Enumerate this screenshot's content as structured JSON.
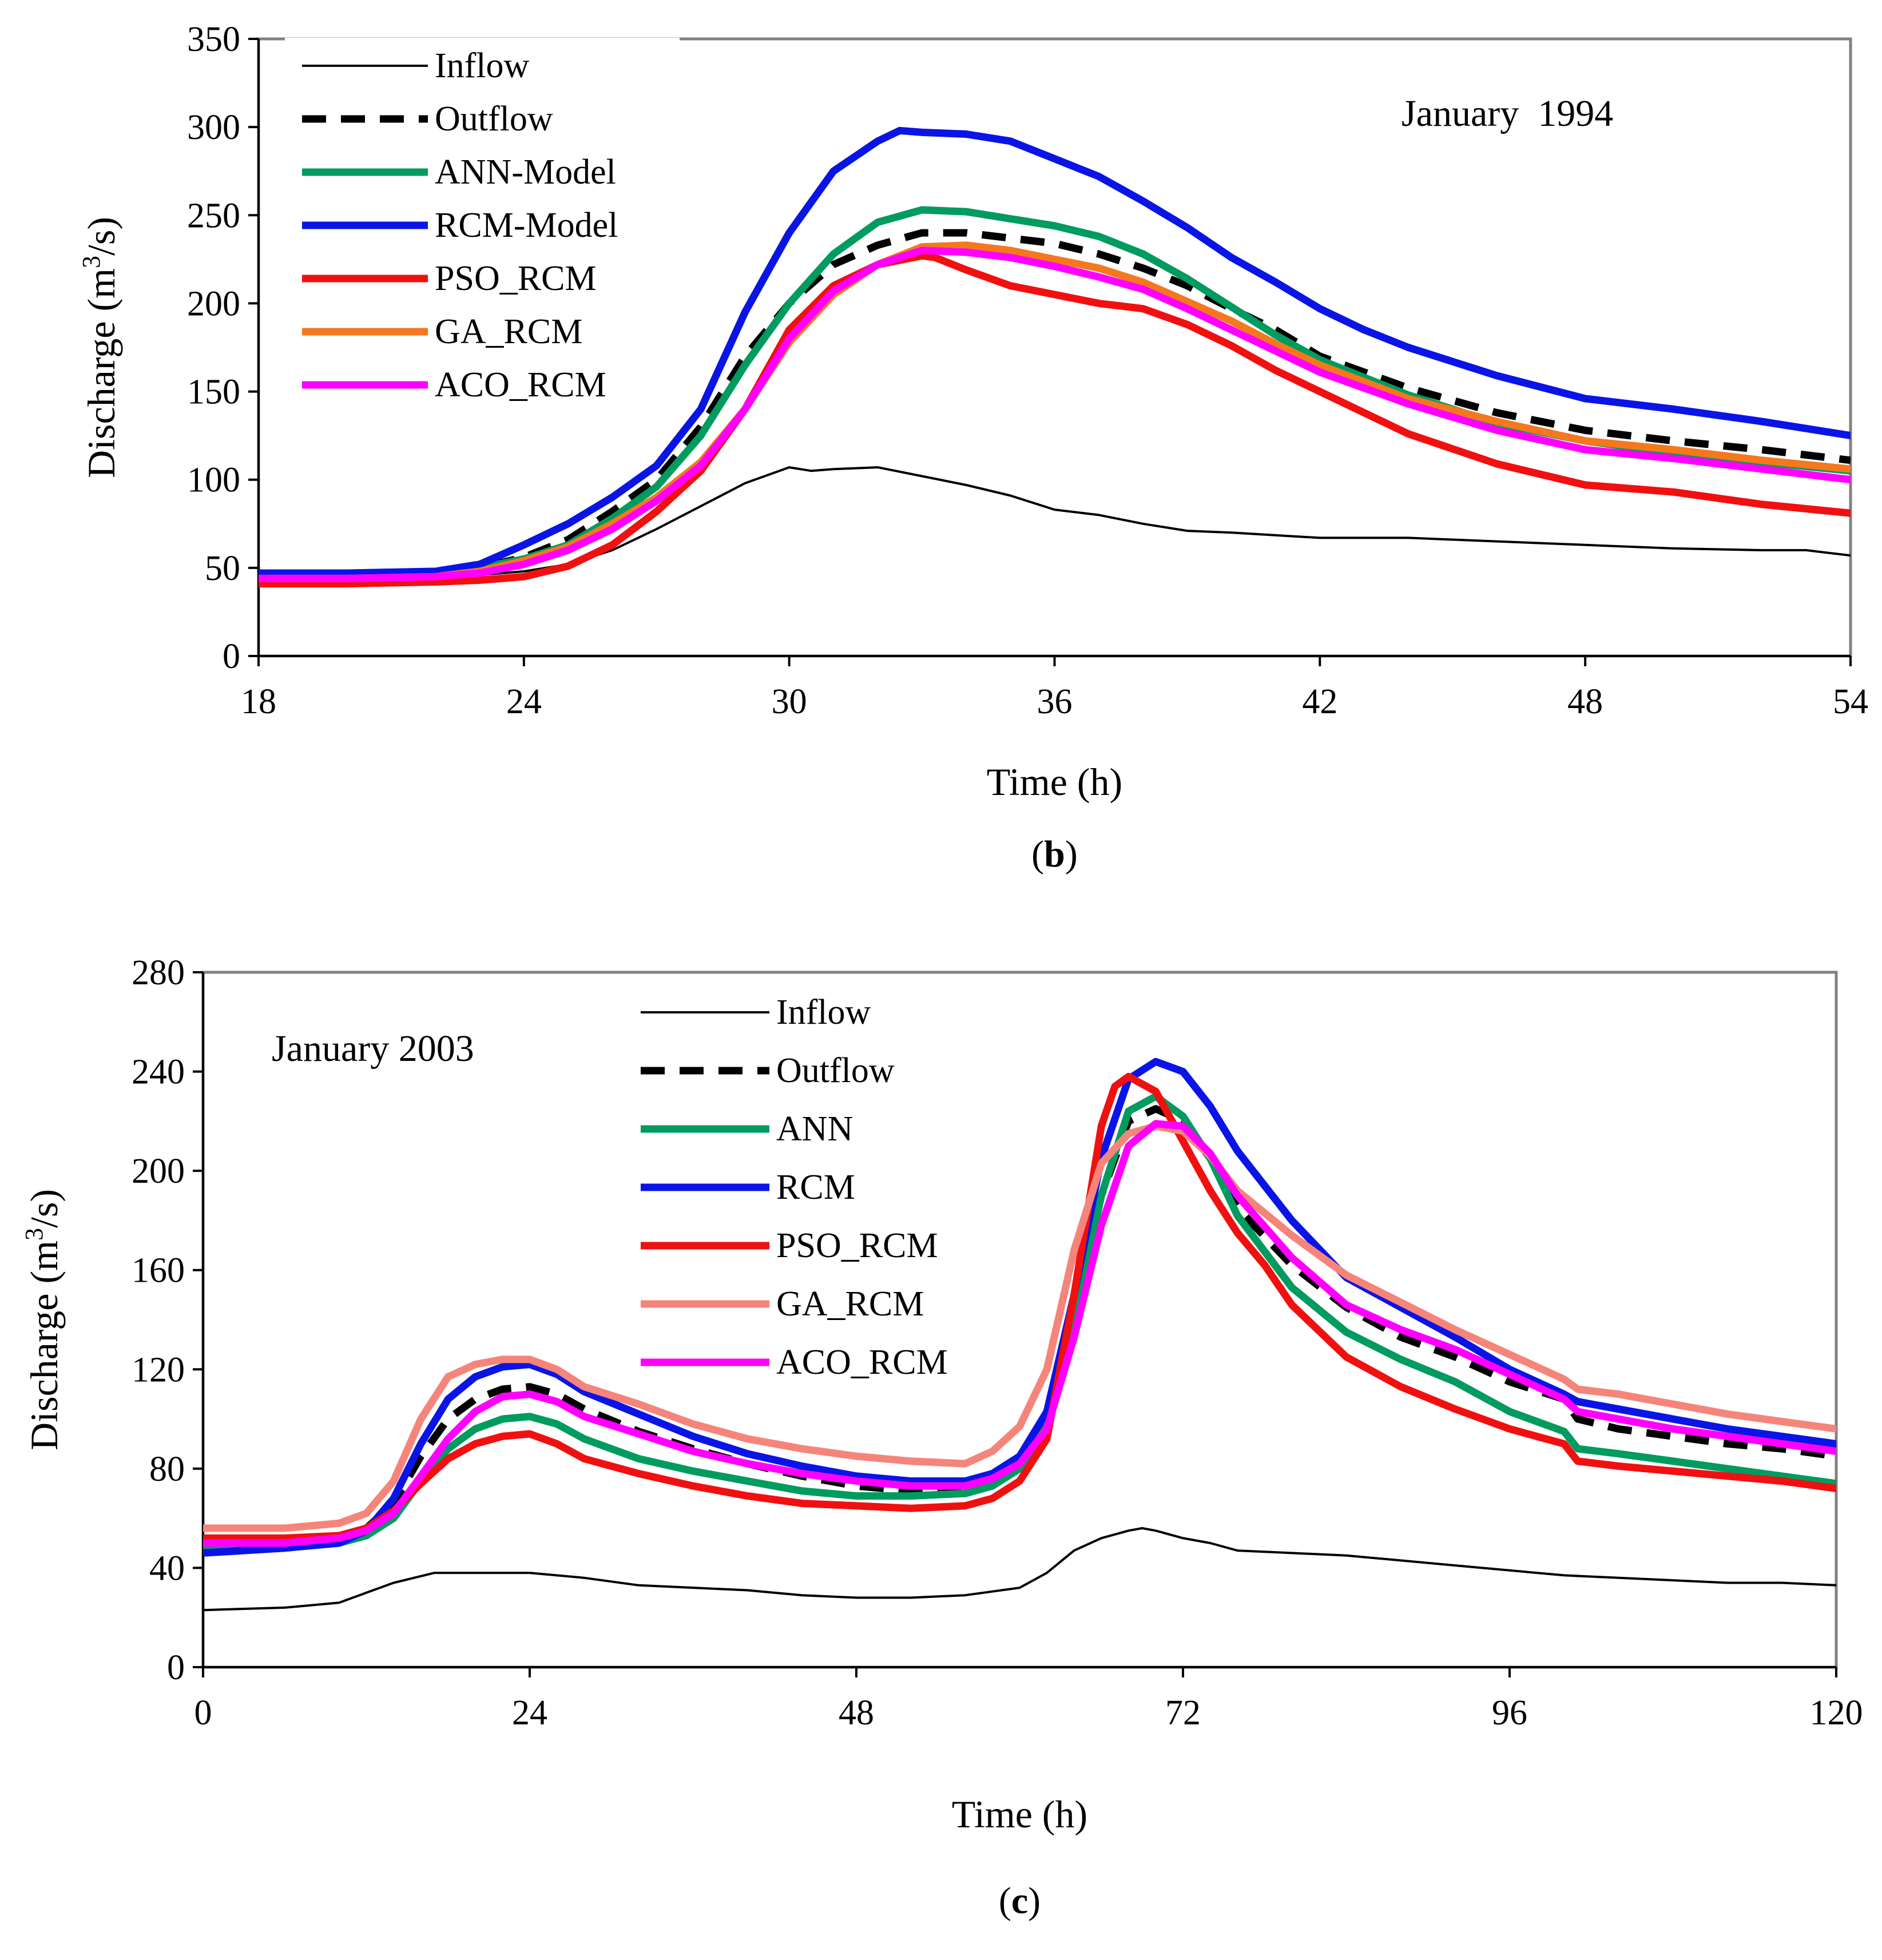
{
  "chart_data": [
    {
      "type": "line",
      "panel_label": {
        "open": "(",
        "letter": "b",
        "close": ")"
      },
      "annotation": "January  1994",
      "xlabel": "Time (h)",
      "ylabel": {
        "base": "Discharge (m",
        "sup": "3",
        "rest": "/s)"
      },
      "xlim": [
        18,
        54
      ],
      "ylim": [
        0,
        350
      ],
      "xticks": [
        18,
        24,
        30,
        36,
        42,
        48,
        54
      ],
      "yticks": [
        0,
        50,
        100,
        150,
        200,
        250,
        300,
        350
      ],
      "grid": false,
      "legend_position": "top-left",
      "series": [
        {
          "name": "Inflow",
          "color": "#000000",
          "style": "thin",
          "x": [
            18,
            20,
            22,
            23,
            24,
            25,
            26,
            27,
            28,
            29,
            30,
            30.5,
            31,
            32,
            33,
            34,
            35,
            36,
            37,
            38,
            39,
            40,
            42,
            44,
            46,
            48,
            50,
            52,
            53,
            54
          ],
          "y": [
            45,
            45,
            45,
            46,
            48,
            52,
            60,
            72,
            85,
            98,
            107,
            105,
            106,
            107,
            102,
            97,
            91,
            83,
            80,
            75,
            71,
            70,
            67,
            67,
            65,
            63,
            61,
            60,
            60,
            57
          ]
        },
        {
          "name": "Outflow",
          "color": "#000000",
          "style": "dashed",
          "x": [
            18,
            20,
            22,
            23,
            24,
            25,
            26,
            27,
            28,
            29,
            30,
            31,
            32,
            33,
            34,
            35,
            36,
            37,
            38,
            39,
            40,
            41,
            42,
            44,
            46,
            48,
            50,
            52,
            54
          ],
          "y": [
            46,
            46,
            47,
            50,
            56,
            66,
            82,
            100,
            130,
            170,
            200,
            222,
            233,
            240,
            240,
            237,
            234,
            228,
            220,
            210,
            197,
            185,
            170,
            152,
            138,
            128,
            122,
            117,
            111
          ]
        },
        {
          "name": "ANN-Model",
          "color": "#009b5e",
          "style": "thick",
          "x": [
            18,
            20,
            22,
            23,
            24,
            25,
            26,
            27,
            28,
            29,
            30,
            31,
            32,
            33,
            34,
            35,
            36,
            37,
            38,
            39,
            40,
            41,
            42,
            44,
            46,
            48,
            50,
            52,
            54
          ],
          "y": [
            47,
            47,
            48,
            50,
            55,
            63,
            78,
            96,
            125,
            165,
            200,
            228,
            246,
            253,
            252,
            248,
            244,
            238,
            228,
            214,
            198,
            182,
            168,
            148,
            132,
            122,
            115,
            110,
            105
          ]
        },
        {
          "name": "RCM-Model",
          "color": "#0a14e6",
          "style": "thick",
          "x": [
            18,
            20,
            22,
            23,
            24,
            25,
            26,
            27,
            28,
            29,
            30,
            31,
            32,
            32.5,
            33,
            34,
            35,
            36,
            37,
            38,
            39,
            40,
            41,
            42,
            43,
            44,
            46,
            48,
            50,
            52,
            54
          ],
          "y": [
            47,
            47,
            48,
            52,
            63,
            75,
            90,
            108,
            140,
            195,
            240,
            275,
            292,
            298,
            297,
            296,
            292,
            282,
            272,
            258,
            243,
            226,
            212,
            197,
            185,
            175,
            159,
            146,
            140,
            133,
            125
          ]
        },
        {
          "name": "PSO_RCM",
          "color": "#f01010",
          "style": "thick",
          "x": [
            18,
            20,
            22,
            23,
            24,
            25,
            26,
            27,
            28,
            29,
            30,
            31,
            32,
            33,
            33.3,
            34,
            35,
            36,
            37,
            38,
            39,
            40,
            41,
            42,
            44,
            46,
            48,
            50,
            52,
            54
          ],
          "y": [
            41,
            41,
            42,
            43,
            45,
            51,
            63,
            82,
            105,
            140,
            185,
            210,
            222,
            227,
            226,
            219,
            210,
            205,
            200,
            197,
            188,
            176,
            162,
            150,
            126,
            109,
            97,
            93,
            86,
            81
          ]
        },
        {
          "name": "GA_RCM",
          "color": "#f5781e",
          "style": "thick",
          "x": [
            18,
            20,
            22,
            23,
            24,
            25,
            26,
            27,
            28,
            29,
            30,
            31,
            32,
            33,
            34,
            35,
            36,
            37,
            38,
            39,
            40,
            41,
            42,
            44,
            46,
            48,
            50,
            52,
            54
          ],
          "y": [
            44,
            44,
            45,
            48,
            54,
            62,
            75,
            90,
            110,
            140,
            178,
            205,
            222,
            232,
            233,
            230,
            225,
            220,
            212,
            201,
            190,
            177,
            165,
            146,
            133,
            122,
            117,
            111,
            106
          ]
        },
        {
          "name": "ACO_RCM",
          "color": "#ff00ff",
          "style": "thick",
          "x": [
            18,
            20,
            22,
            23,
            24,
            25,
            26,
            27,
            28,
            29,
            30,
            31,
            32,
            33,
            34,
            35,
            36,
            37,
            38,
            39,
            40,
            41,
            42,
            44,
            46,
            48,
            50,
            52,
            54
          ],
          "y": [
            44,
            44,
            45,
            47,
            52,
            60,
            72,
            88,
            108,
            140,
            180,
            207,
            222,
            230,
            229,
            226,
            221,
            215,
            208,
            197,
            185,
            173,
            161,
            143,
            128,
            117,
            112,
            106,
            100
          ]
        }
      ]
    },
    {
      "type": "line",
      "panel_label": {
        "open": "(",
        "letter": "c",
        "close": ")"
      },
      "annotation": "January 2003",
      "xlabel": "Time (h)",
      "ylabel": {
        "base": "Discharge (m",
        "sup": "3",
        "rest": "/s)"
      },
      "xlim": [
        0,
        120
      ],
      "ylim": [
        0,
        280
      ],
      "xticks": [
        0,
        24,
        48,
        72,
        96,
        120
      ],
      "yticks": [
        0,
        40,
        80,
        120,
        160,
        200,
        240,
        280
      ],
      "grid": false,
      "legend_position": "top-center",
      "series": [
        {
          "name": "Inflow",
          "color": "#000000",
          "style": "thin",
          "x": [
            0,
            6,
            10,
            12,
            14,
            17,
            20,
            24,
            28,
            32,
            36,
            40,
            44,
            48,
            52,
            56,
            60,
            62,
            64,
            66,
            68,
            69,
            70,
            72,
            74,
            76,
            80,
            84,
            88,
            92,
            96,
            100,
            104,
            108,
            112,
            116,
            120
          ],
          "y": [
            23,
            24,
            26,
            30,
            34,
            38,
            38,
            38,
            36,
            33,
            32,
            31,
            29,
            28,
            28,
            29,
            32,
            38,
            47,
            52,
            55,
            56,
            55,
            52,
            50,
            47,
            46,
            45,
            43,
            41,
            39,
            37,
            36,
            35,
            34,
            34,
            33
          ]
        },
        {
          "name": "Outflow",
          "color": "#000000",
          "style": "dashed",
          "x": [
            0,
            6,
            10,
            12,
            14,
            16,
            18,
            20,
            22,
            24,
            26,
            28,
            32,
            36,
            40,
            44,
            48,
            52,
            56,
            58,
            60,
            62,
            64,
            66,
            68,
            70,
            72,
            74,
            76,
            80,
            84,
            88,
            92,
            96,
            100,
            101,
            104,
            108,
            112,
            116,
            120
          ],
          "y": [
            49,
            50,
            52,
            56,
            66,
            85,
            100,
            108,
            112,
            113,
            110,
            104,
            95,
            88,
            82,
            77,
            73,
            71,
            73,
            77,
            83,
            100,
            140,
            190,
            220,
            225,
            220,
            205,
            185,
            162,
            145,
            133,
            125,
            115,
            108,
            100,
            96,
            93,
            90,
            88,
            85
          ]
        },
        {
          "name": "ANN",
          "color": "#009b5e",
          "style": "thick",
          "x": [
            0,
            6,
            10,
            12,
            14,
            16,
            18,
            20,
            22,
            24,
            26,
            28,
            32,
            36,
            40,
            44,
            48,
            52,
            56,
            58,
            60,
            62,
            64,
            66,
            68,
            70,
            72,
            74,
            76,
            80,
            84,
            88,
            92,
            96,
            100,
            101,
            104,
            108,
            112,
            116,
            120
          ],
          "y": [
            47,
            48,
            50,
            53,
            60,
            75,
            88,
            96,
            100,
            101,
            98,
            92,
            84,
            79,
            75,
            71,
            69,
            69,
            70,
            73,
            80,
            97,
            140,
            190,
            224,
            230,
            222,
            205,
            182,
            153,
            135,
            124,
            115,
            103,
            95,
            88,
            86,
            83,
            80,
            77,
            74
          ]
        },
        {
          "name": "RCM",
          "color": "#0a14e6",
          "style": "thick",
          "x": [
            0,
            6,
            10,
            12,
            14,
            16,
            18,
            20,
            22,
            24,
            26,
            28,
            32,
            36,
            40,
            44,
            48,
            52,
            56,
            58,
            60,
            62,
            64,
            66,
            68,
            70,
            72,
            74,
            76,
            80,
            84,
            88,
            92,
            96,
            100,
            101,
            104,
            108,
            112,
            116,
            120
          ],
          "y": [
            46,
            48,
            50,
            55,
            68,
            90,
            108,
            117,
            121,
            122,
            118,
            111,
            102,
            93,
            86,
            81,
            77,
            75,
            75,
            78,
            85,
            103,
            150,
            205,
            237,
            244,
            240,
            226,
            208,
            180,
            157,
            145,
            133,
            120,
            110,
            107,
            104,
            100,
            96,
            93,
            90
          ]
        },
        {
          "name": "PSO_RCM",
          "color": "#f01010",
          "style": "thick",
          "x": [
            0,
            6,
            10,
            12,
            14,
            16,
            18,
            20,
            22,
            24,
            26,
            28,
            32,
            36,
            40,
            44,
            48,
            52,
            56,
            58,
            60,
            62,
            64,
            66,
            67,
            68,
            70,
            72,
            74,
            76,
            78,
            80,
            84,
            88,
            92,
            96,
            100,
            101,
            104,
            108,
            112,
            116,
            120
          ],
          "y": [
            52,
            52,
            53,
            56,
            63,
            74,
            84,
            90,
            93,
            94,
            90,
            84,
            78,
            73,
            69,
            66,
            65,
            64,
            65,
            68,
            75,
            92,
            150,
            218,
            234,
            238,
            232,
            212,
            192,
            175,
            162,
            146,
            125,
            113,
            104,
            96,
            90,
            83,
            81,
            79,
            77,
            75,
            72
          ]
        },
        {
          "name": "GA_RCM",
          "color": "#f5857a",
          "style": "thick",
          "x": [
            0,
            6,
            10,
            12,
            14,
            16,
            18,
            20,
            22,
            24,
            26,
            28,
            32,
            36,
            40,
            44,
            48,
            52,
            56,
            58,
            60,
            62,
            64,
            66,
            68,
            70,
            72,
            74,
            76,
            80,
            84,
            88,
            92,
            96,
            100,
            101,
            104,
            108,
            112,
            116,
            120
          ],
          "y": [
            56,
            56,
            58,
            62,
            75,
            100,
            117,
            122,
            124,
            124,
            120,
            113,
            106,
            98,
            92,
            88,
            85,
            83,
            82,
            87,
            97,
            120,
            168,
            203,
            215,
            218,
            216,
            206,
            192,
            174,
            158,
            147,
            136,
            126,
            116,
            112,
            110,
            106,
            102,
            99,
            96
          ]
        },
        {
          "name": "ACO_RCM",
          "color": "#ff00ff",
          "style": "thick",
          "x": [
            0,
            6,
            10,
            12,
            14,
            16,
            18,
            20,
            22,
            24,
            26,
            28,
            32,
            36,
            40,
            44,
            48,
            52,
            56,
            58,
            60,
            62,
            64,
            66,
            68,
            70,
            72,
            74,
            76,
            80,
            84,
            88,
            92,
            96,
            100,
            101,
            104,
            108,
            112,
            116,
            120
          ],
          "y": [
            50,
            50,
            52,
            55,
            62,
            77,
            92,
            103,
            109,
            110,
            107,
            101,
            94,
            87,
            82,
            78,
            75,
            73,
            73,
            76,
            82,
            96,
            133,
            178,
            210,
            219,
            218,
            207,
            190,
            165,
            146,
            136,
            128,
            118,
            108,
            103,
            100,
            96,
            93,
            90,
            87
          ]
        }
      ]
    }
  ]
}
